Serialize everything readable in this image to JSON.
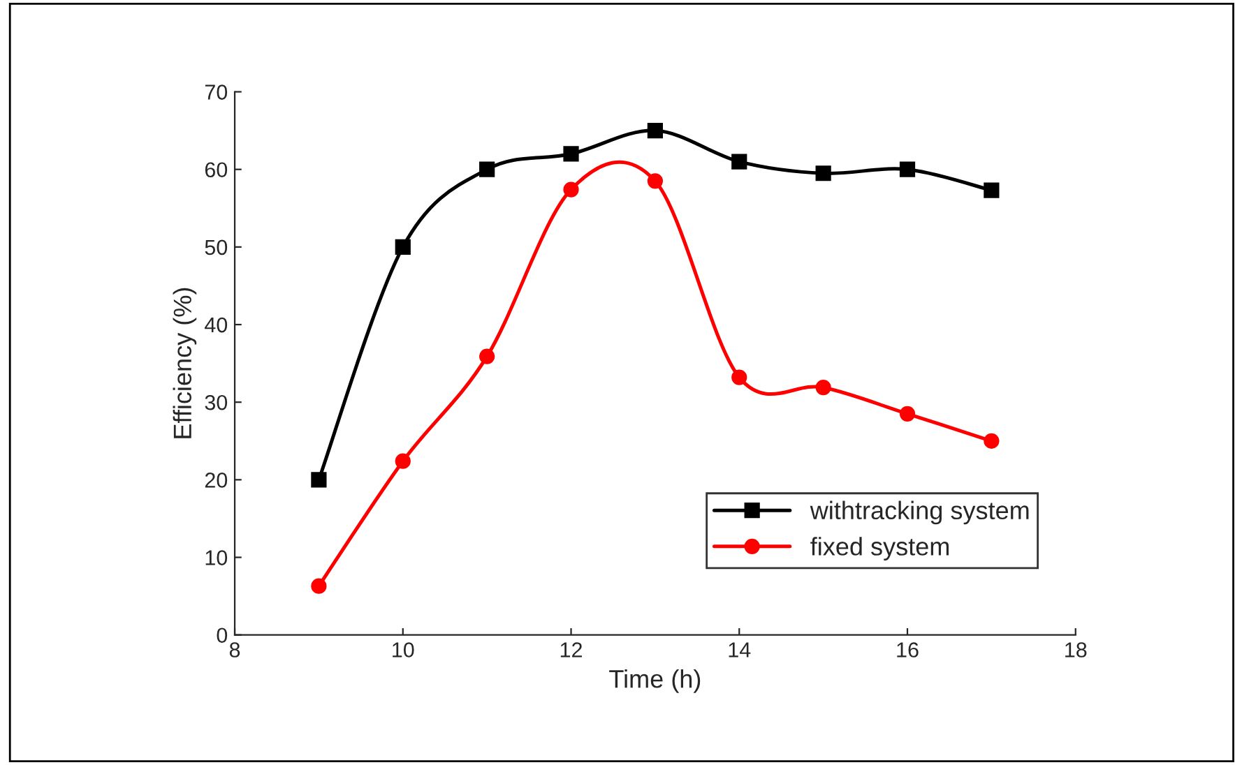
{
  "chart_data": {
    "type": "line",
    "xlabel": "Time (h)",
    "ylabel": "Efficiency (%)",
    "x": [
      9,
      10,
      11,
      12,
      13,
      14,
      15,
      16,
      17
    ],
    "series": [
      {
        "name": "withtracking system",
        "color": "#000000",
        "marker": "square",
        "values": [
          20,
          50,
          60,
          62,
          65,
          61,
          59.5,
          60,
          57.3
        ]
      },
      {
        "name": "fixed system",
        "color": "#ff0000",
        "marker": "circle",
        "values": [
          6.3,
          22.4,
          35.9,
          57.4,
          58.5,
          33.2,
          31.9,
          28.5,
          25
        ]
      }
    ],
    "xlim": [
      8,
      18
    ],
    "xticks": [
      8,
      10,
      12,
      14,
      16,
      18
    ],
    "ylim": [
      0,
      70
    ],
    "yticks": [
      0,
      10,
      20,
      30,
      40,
      50,
      60,
      70
    ],
    "grid": false,
    "legend": "bottom right",
    "line_style": "solid"
  }
}
